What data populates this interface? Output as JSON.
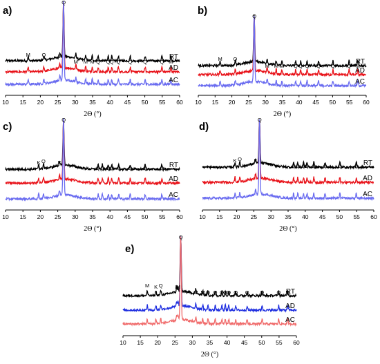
{
  "chart_data": [
    {
      "type": "line",
      "panel": "a)",
      "xlabel": "2Θ (°)",
      "xlim": [
        10,
        60
      ],
      "xticks": [
        10,
        15,
        20,
        25,
        30,
        35,
        40,
        45,
        50,
        55,
        60
      ],
      "series": [
        {
          "name": "AC",
          "color": "#6a6cf0"
        },
        {
          "name": "AD",
          "color": "#e8131a"
        },
        {
          "name": "RT",
          "color": "#000000"
        }
      ],
      "peak_labels": [
        {
          "x": 16.5,
          "text": "M"
        },
        {
          "x": 21.0,
          "text": "Q"
        },
        {
          "x": 25.6,
          "text": "M"
        },
        {
          "x": 26.7,
          "text": "Q"
        },
        {
          "x": 30.2,
          "text": "M"
        },
        {
          "x": 33.0,
          "text": "M"
        },
        {
          "x": 34.9,
          "text": "M"
        },
        {
          "x": 36.6,
          "text": "Q"
        },
        {
          "x": 39.5,
          "text": "Q"
        },
        {
          "x": 40.5,
          "text": "Q"
        },
        {
          "x": 42.4,
          "text": "Q"
        },
        {
          "x": 45.8,
          "text": "Q"
        },
        {
          "x": 50.1,
          "text": "Q"
        },
        {
          "x": 54.9,
          "text": "Q"
        },
        {
          "x": 57.5,
          "text": "M"
        }
      ]
    },
    {
      "type": "line",
      "panel": "b)",
      "xlabel": "2Θ (°)",
      "xlim": [
        10,
        60
      ],
      "xticks": [
        10,
        15,
        20,
        25,
        30,
        35,
        40,
        45,
        50,
        55,
        60
      ],
      "series": [
        {
          "name": "AC",
          "color": "#6a6cf0"
        },
        {
          "name": "AD",
          "color": "#e8131a"
        },
        {
          "name": "RT",
          "color": "#000000"
        }
      ],
      "peak_labels": [
        {
          "x": 16.5,
          "text": "M"
        },
        {
          "x": 21.0,
          "text": "Q"
        },
        {
          "x": 26.7,
          "text": "Q"
        },
        {
          "x": 30.5,
          "text": "M"
        },
        {
          "x": 33.2,
          "text": "M"
        },
        {
          "x": 34.9,
          "text": "M"
        },
        {
          "x": 39.0,
          "text": "Q"
        },
        {
          "x": 40.5,
          "text": "Q"
        },
        {
          "x": 42.4,
          "text": "Q"
        },
        {
          "x": 45.8,
          "text": "Q"
        },
        {
          "x": 50.1,
          "text": "Q"
        },
        {
          "x": 54.9,
          "text": "Q"
        },
        {
          "x": 57.5,
          "text": "M"
        }
      ]
    },
    {
      "type": "line",
      "panel": "c)",
      "xlabel": "2Θ (°)",
      "xlim": [
        10,
        60
      ],
      "xticks": [
        10,
        15,
        20,
        25,
        30,
        35,
        40,
        45,
        50,
        55,
        60
      ],
      "series": [
        {
          "name": "AC",
          "color": "#6a6cf0"
        },
        {
          "name": "AD",
          "color": "#e8131a"
        },
        {
          "name": "RT",
          "color": "#000000"
        }
      ],
      "peak_labels": [
        {
          "x": 19.5,
          "text": "K"
        },
        {
          "x": 20.9,
          "text": "Q"
        },
        {
          "x": 25.5,
          "text": "K"
        },
        {
          "x": 26.7,
          "text": "Q"
        },
        {
          "x": 36.6,
          "text": "Q"
        },
        {
          "x": 37.8,
          "text": "Q"
        },
        {
          "x": 39.5,
          "text": "Q"
        },
        {
          "x": 40.5,
          "text": "Q"
        },
        {
          "x": 42.5,
          "text": "Q"
        },
        {
          "x": 45.8,
          "text": "Q"
        },
        {
          "x": 50.1,
          "text": "Q"
        },
        {
          "x": 54.9,
          "text": "Q"
        }
      ]
    },
    {
      "type": "line",
      "panel": "d)",
      "xlabel": "2Θ (°)",
      "xlim": [
        10,
        60
      ],
      "xticks": [
        10,
        15,
        20,
        25,
        30,
        35,
        40,
        45,
        50,
        55,
        60
      ],
      "series": [
        {
          "name": "AC",
          "color": "#6a6cf0"
        },
        {
          "name": "AD",
          "color": "#e8131a"
        },
        {
          "name": "RT",
          "color": "#000000"
        }
      ],
      "peak_labels": [
        {
          "x": 19.5,
          "text": "K"
        },
        {
          "x": 20.9,
          "text": "Q"
        },
        {
          "x": 25.5,
          "text": "K"
        },
        {
          "x": 26.7,
          "text": "Q"
        },
        {
          "x": 36.6,
          "text": "Q"
        },
        {
          "x": 37.8,
          "text": "Q"
        },
        {
          "x": 39.5,
          "text": "Q"
        },
        {
          "x": 40.5,
          "text": "Q"
        },
        {
          "x": 42.5,
          "text": "Q"
        },
        {
          "x": 45.8,
          "text": "Q"
        },
        {
          "x": 50.1,
          "text": "Q"
        },
        {
          "x": 54.9,
          "text": "Q"
        }
      ]
    },
    {
      "type": "line",
      "panel": "e)",
      "xlabel": "2Θ (°)",
      "xlim": [
        10,
        60
      ],
      "xticks": [
        10,
        15,
        20,
        25,
        30,
        35,
        40,
        45,
        50,
        55,
        60
      ],
      "series": [
        {
          "name": "AC",
          "color": "#f06b6b"
        },
        {
          "name": "AD",
          "color": "#1f2fe0"
        },
        {
          "name": "RT",
          "color": "#000000"
        }
      ],
      "peak_labels": [
        {
          "x": 17.0,
          "text": "M"
        },
        {
          "x": 19.5,
          "text": "K"
        },
        {
          "x": 20.9,
          "text": "Q"
        },
        {
          "x": 25.5,
          "text": "K"
        },
        {
          "x": 25.9,
          "text": "M"
        },
        {
          "x": 26.7,
          "text": "Q"
        },
        {
          "x": 31.0,
          "text": "M"
        },
        {
          "x": 33.0,
          "text": "M"
        },
        {
          "x": 34.5,
          "text": "Q"
        },
        {
          "x": 36.6,
          "text": "Q"
        },
        {
          "x": 38.5,
          "text": "Q"
        },
        {
          "x": 39.5,
          "text": "Q"
        },
        {
          "x": 40.5,
          "text": "Q"
        },
        {
          "x": 42.5,
          "text": "Q"
        },
        {
          "x": 45.8,
          "text": "Q"
        },
        {
          "x": 50.1,
          "text": "Q"
        },
        {
          "x": 54.9,
          "text": "Q"
        },
        {
          "x": 57.5,
          "text": "M"
        }
      ]
    }
  ]
}
